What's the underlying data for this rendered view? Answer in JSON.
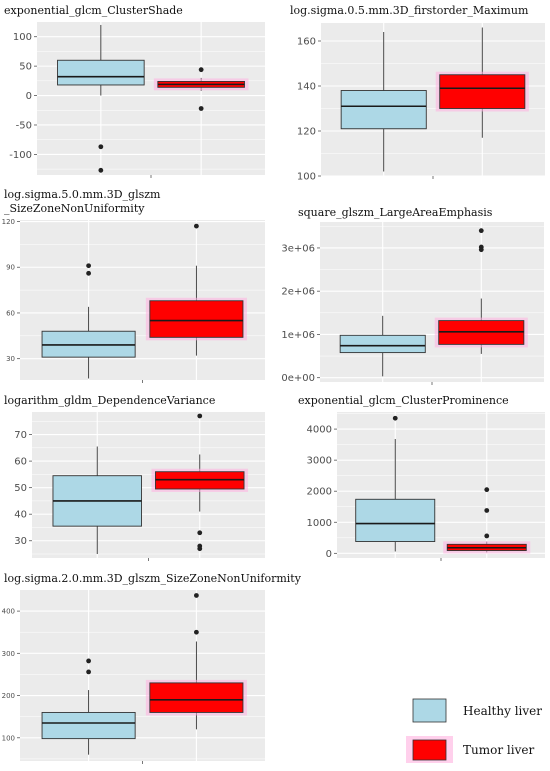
{
  "colors": {
    "panel_bg": "#ebebeb",
    "grid": "#ffffff",
    "healthy": "#add8e6",
    "tumor": "#ff0000",
    "tumor_glow": "#ffb0e0",
    "outline": "#333333",
    "median": "#1a1a1a"
  },
  "legend": {
    "healthy_label": "Healthy liver",
    "tumor_label": "Tumor liver"
  },
  "chart_data": [
    {
      "type": "box",
      "title": [
        "exponential_glcm_ClusterShade"
      ],
      "ylim": [
        -135,
        125
      ],
      "ticks": [
        100,
        50,
        0,
        -50,
        -100
      ],
      "tick_labels": [
        "100",
        "50",
        "0",
        "-50",
        "-100"
      ],
      "series": [
        {
          "name": "Healthy liver",
          "whisker_low": 0,
          "q1": 18,
          "median": 32,
          "q3": 60,
          "whisker_high": 120,
          "outliers": [
            -87,
            -127
          ]
        },
        {
          "name": "Tumor liver",
          "whisker_low": 8,
          "q1": 14,
          "median": 19,
          "q3": 24,
          "whisker_high": 30,
          "outliers": [
            44,
            -22
          ]
        }
      ]
    },
    {
      "type": "box",
      "title": [
        "log.sigma.0.5.mm.3D_firstorder_Maximum"
      ],
      "ylim": [
        100,
        168
      ],
      "ticks": [
        160,
        140,
        120,
        100
      ],
      "tick_labels": [
        "160",
        "140",
        "120",
        "100"
      ],
      "series": [
        {
          "name": "Healthy liver",
          "whisker_low": 102,
          "q1": 121,
          "median": 131,
          "q3": 138,
          "whisker_high": 164,
          "outliers": []
        },
        {
          "name": "Tumor liver",
          "whisker_low": 117,
          "q1": 130,
          "median": 139,
          "q3": 145,
          "whisker_high": 166,
          "outliers": []
        }
      ]
    },
    {
      "type": "box",
      "title": [
        "log.sigma.5.0.mm.3D_glszm",
        "_SizeZoneNonUniformity"
      ],
      "ylim": [
        16,
        121
      ],
      "ticks": [
        120,
        90,
        60,
        30
      ],
      "tick_labels": [
        "120",
        "90",
        "60",
        "30"
      ],
      "series": [
        {
          "name": "Healthy liver",
          "whisker_low": 17,
          "q1": 31,
          "median": 39,
          "q3": 48,
          "whisker_high": 64,
          "outliers": [
            91,
            86
          ]
        },
        {
          "name": "Tumor liver",
          "whisker_low": 32,
          "q1": 44,
          "median": 55,
          "q3": 68,
          "whisker_high": 91,
          "outliers": [
            117
          ]
        }
      ]
    },
    {
      "type": "box",
      "title": [
        "square_glszm_LargeAreaEmphasis"
      ],
      "ylim": [
        -100000,
        3600000
      ],
      "ticks": [
        3000000,
        2000000,
        1000000,
        0
      ],
      "tick_labels": [
        "3e+06",
        "2e+06",
        "1e+06",
        "0e+00"
      ],
      "series": [
        {
          "name": "Healthy liver",
          "whisker_low": 30000,
          "q1": 580000,
          "median": 740000,
          "q3": 980000,
          "whisker_high": 1430000,
          "outliers": []
        },
        {
          "name": "Tumor liver",
          "whisker_low": 550000,
          "q1": 770000,
          "median": 1060000,
          "q3": 1320000,
          "whisker_high": 1830000,
          "outliers": [
            3400000,
            3020000,
            2960000
          ]
        }
      ]
    },
    {
      "type": "box",
      "title": [
        "logarithm_gldm_DependenceVariance"
      ],
      "ylim": [
        23.5,
        78.5
      ],
      "ticks": [
        70,
        60,
        50,
        40,
        30
      ],
      "tick_labels": [
        "70",
        "60",
        "50",
        "40",
        "30"
      ],
      "series": [
        {
          "name": "Healthy liver",
          "whisker_low": 25,
          "q1": 35.5,
          "median": 45,
          "q3": 54.5,
          "whisker_high": 65.5,
          "outliers": []
        },
        {
          "name": "Tumor liver",
          "whisker_low": 41,
          "q1": 49.5,
          "median": 53,
          "q3": 56,
          "whisker_high": 62.5,
          "outliers": [
            77,
            33,
            28,
            27
          ]
        }
      ]
    },
    {
      "type": "box",
      "title": [
        "exponential_glcm_ClusterProminence"
      ],
      "ylim": [
        -150,
        4550
      ],
      "ticks": [
        4000,
        3000,
        2000,
        1000,
        0
      ],
      "tick_labels": [
        "4000",
        "3000",
        "2000",
        "1000",
        "0"
      ],
      "series": [
        {
          "name": "Healthy liver",
          "whisker_low": 60,
          "q1": 380,
          "median": 960,
          "q3": 1740,
          "whisker_high": 3680,
          "outliers": [
            4350
          ]
        },
        {
          "name": "Tumor liver",
          "whisker_low": 30,
          "q1": 90,
          "median": 180,
          "q3": 290,
          "whisker_high": 380,
          "outliers": [
            2050,
            1380,
            560
          ]
        }
      ]
    },
    {
      "type": "box",
      "title": [
        "log.sigma.2.0.mm.3D_glszm_SizeZoneNonUniformity"
      ],
      "ylim": [
        45,
        450
      ],
      "ticks": [
        400,
        300,
        200,
        100
      ],
      "tick_labels": [
        "400",
        "300",
        "200",
        "100"
      ],
      "series": [
        {
          "name": "Healthy liver",
          "whisker_low": 60,
          "q1": 98,
          "median": 135,
          "q3": 160,
          "whisker_high": 213,
          "outliers": [
            282,
            256
          ]
        },
        {
          "name": "Tumor liver",
          "whisker_low": 120,
          "q1": 160,
          "median": 190,
          "q3": 230,
          "whisker_high": 328,
          "outliers": [
            437,
            350
          ]
        }
      ]
    }
  ]
}
